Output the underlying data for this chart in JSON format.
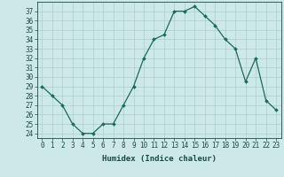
{
  "x": [
    0,
    1,
    2,
    3,
    4,
    5,
    6,
    7,
    8,
    9,
    10,
    11,
    12,
    13,
    14,
    15,
    16,
    17,
    18,
    19,
    20,
    21,
    22,
    23
  ],
  "y": [
    29,
    28,
    27,
    25,
    24,
    24,
    25,
    25,
    27,
    29,
    32,
    34,
    34.5,
    37,
    37,
    37.5,
    36.5,
    35.5,
    34,
    33,
    29.5,
    32,
    27.5,
    26.5
  ],
  "line_color": "#1a6b5a",
  "marker": "D",
  "marker_size": 2,
  "bg_color": "#cce8e8",
  "grid_color": "#aacfcf",
  "xlabel": "Humidex (Indice chaleur)",
  "ylim": [
    23.5,
    38
  ],
  "xlim": [
    -0.5,
    23.5
  ],
  "yticks": [
    24,
    25,
    26,
    27,
    28,
    29,
    30,
    31,
    32,
    33,
    34,
    35,
    36,
    37
  ],
  "xticks": [
    0,
    1,
    2,
    3,
    4,
    5,
    6,
    7,
    8,
    9,
    10,
    11,
    12,
    13,
    14,
    15,
    16,
    17,
    18,
    19,
    20,
    21,
    22,
    23
  ],
  "xtick_labels": [
    "0",
    "1",
    "2",
    "3",
    "4",
    "5",
    "6",
    "7",
    "8",
    "9",
    "10",
    "11",
    "12",
    "13",
    "14",
    "15",
    "16",
    "17",
    "18",
    "19",
    "20",
    "21",
    "22",
    "23"
  ],
  "font_color": "#1a4a44",
  "label_fontsize": 6.5,
  "tick_fontsize": 5.5
}
